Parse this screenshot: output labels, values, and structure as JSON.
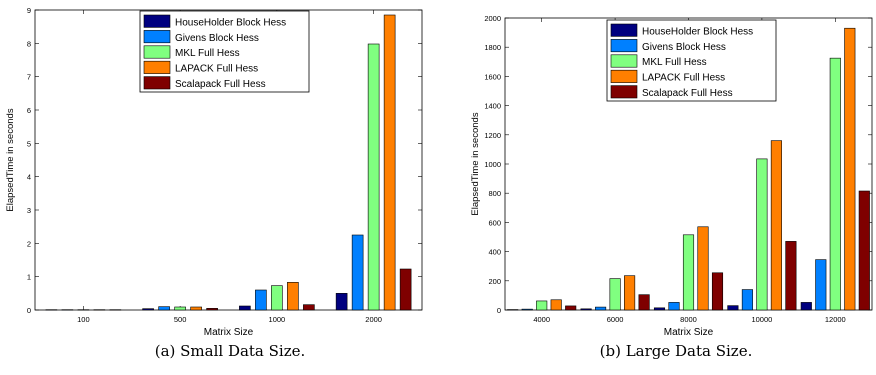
{
  "colors": {
    "householder": "#00007f",
    "givens": "#0080ff",
    "mkl": "#80ff80",
    "lapack": "#ff7f00",
    "scalapack": "#7f0000"
  },
  "chart_data": [
    {
      "type": "bar",
      "caption": "(a) Small Data Size.",
      "xlabel": "Matrix Size",
      "ylabel": "ElapsedTime in seconds",
      "ylim": [
        0,
        9
      ],
      "yticks": [
        0,
        1,
        2,
        3,
        4,
        5,
        6,
        7,
        8,
        9
      ],
      "categories": [
        "100",
        "500",
        "1000",
        "2000"
      ],
      "legend_position": "top-center",
      "grid": false,
      "series": [
        {
          "name": "HouseHolder Block Hess",
          "color": "#00007f",
          "values": [
            0.01,
            0.04,
            0.12,
            0.5
          ]
        },
        {
          "name": "Givens Block Hess",
          "color": "#0080ff",
          "values": [
            0.01,
            0.1,
            0.6,
            2.25
          ]
        },
        {
          "name": "MKL Full Hess",
          "color": "#80ff80",
          "values": [
            0.01,
            0.09,
            0.73,
            7.98
          ]
        },
        {
          "name": "LAPACK Full Hess",
          "color": "#ff7f00",
          "values": [
            0.01,
            0.09,
            0.83,
            8.85
          ]
        },
        {
          "name": "Scalapack Full Hess",
          "color": "#7f0000",
          "values": [
            0.01,
            0.05,
            0.16,
            1.23
          ]
        }
      ]
    },
    {
      "type": "bar",
      "caption": "(b) Large Data Size.",
      "xlabel": "Matrix Size",
      "ylabel": "ElapsedTime in seconds",
      "ylim": [
        0,
        2000
      ],
      "yticks": [
        0,
        200,
        400,
        600,
        800,
        1000,
        1200,
        1400,
        1600,
        1800,
        2000
      ],
      "categories": [
        "4000",
        "6000",
        "8000",
        "10000",
        "12000"
      ],
      "legend_position": "top-center",
      "grid": false,
      "series": [
        {
          "name": "HouseHolder Block Hess",
          "color": "#00007f",
          "values": [
            3,
            8,
            15,
            30,
            52
          ]
        },
        {
          "name": "Givens Block Hess",
          "color": "#0080ff",
          "values": [
            6,
            20,
            52,
            140,
            345
          ]
        },
        {
          "name": "MKL Full Hess",
          "color": "#80ff80",
          "values": [
            62,
            215,
            515,
            1035,
            1725
          ]
        },
        {
          "name": "LAPACK Full Hess",
          "color": "#ff7f00",
          "values": [
            70,
            235,
            570,
            1160,
            1930
          ]
        },
        {
          "name": "Scalapack Full Hess",
          "color": "#7f0000",
          "values": [
            28,
            105,
            255,
            470,
            815
          ]
        }
      ]
    }
  ]
}
